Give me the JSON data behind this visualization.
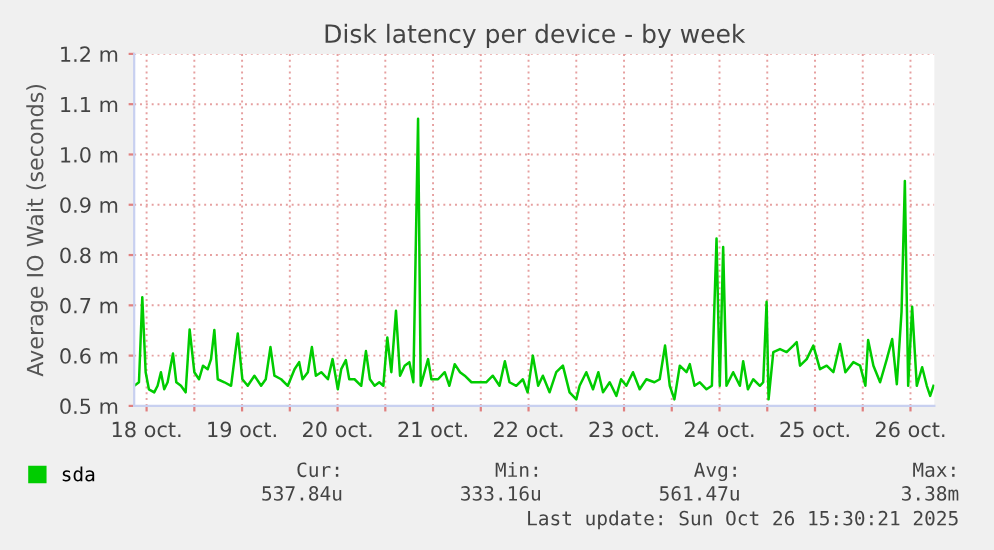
{
  "chart_data": {
    "type": "line",
    "title": "Disk latency per device - by week",
    "ylabel": "Average IO Wait (seconds)",
    "xlim": [
      "2025-10-18T08:53",
      "2025-10-26T18:00"
    ],
    "ylim": [
      0.5,
      1.2
    ],
    "xticks": [
      {
        "value": "2025-10-18T12:00",
        "label": "18 oct."
      },
      {
        "value": "2025-10-19T00:00",
        "label": null
      },
      {
        "value": "2025-10-19T12:00",
        "label": "19 oct."
      },
      {
        "value": "2025-10-20T00:00",
        "label": null
      },
      {
        "value": "2025-10-20T12:00",
        "label": "20 oct."
      },
      {
        "value": "2025-10-21T00:00",
        "label": null
      },
      {
        "value": "2025-10-21T12:00",
        "label": "21 oct."
      },
      {
        "value": "2025-10-22T00:00",
        "label": null
      },
      {
        "value": "2025-10-22T12:00",
        "label": "22 oct."
      },
      {
        "value": "2025-10-23T00:00",
        "label": null
      },
      {
        "value": "2025-10-23T12:00",
        "label": "23 oct."
      },
      {
        "value": "2025-10-24T00:00",
        "label": null
      },
      {
        "value": "2025-10-24T12:00",
        "label": "24 oct."
      },
      {
        "value": "2025-10-25T00:00",
        "label": null
      },
      {
        "value": "2025-10-25T12:00",
        "label": "25 oct."
      },
      {
        "value": "2025-10-26T00:00",
        "label": null
      },
      {
        "value": "2025-10-26T12:00",
        "label": "26 oct."
      }
    ],
    "yticks": [
      {
        "value": 0.5,
        "label": "0.5 m"
      },
      {
        "value": 0.6,
        "label": "0.6 m"
      },
      {
        "value": 0.7,
        "label": "0.7 m"
      },
      {
        "value": 0.8,
        "label": "0.8 m"
      },
      {
        "value": 0.9,
        "label": "0.9 m"
      },
      {
        "value": 1.0,
        "label": "1.0 m"
      },
      {
        "value": 1.1,
        "label": "1.1 m"
      },
      {
        "value": 1.2,
        "label": "1.2 m"
      }
    ],
    "grid": true,
    "legend": "bottom left",
    "marker": "none",
    "line_style": "solid",
    "annotations": [
      "Cur:",
      "Min:",
      "Avg:",
      "Max:",
      "537.84u",
      "333.16u",
      "561.47u",
      "3.38m",
      "Last update: Sun Oct 26 15:30:21 2025"
    ],
    "series": [
      {
        "name": "sda",
        "color": "#00cc00",
        "x": [
          "2025-10-18T08:54",
          "2025-10-18T10:05",
          "2025-10-18T10:55",
          "2025-10-18T11:46",
          "2025-10-18T12:35",
          "2025-10-18T13:55",
          "2025-10-18T14:46",
          "2025-10-18T15:36",
          "2025-10-18T16:26",
          "2025-10-18T17:17",
          "2025-10-18T18:38",
          "2025-10-18T19:28",
          "2025-10-18T20:38",
          "2025-10-18T21:49",
          "2025-10-18T22:49",
          "2025-10-19T00:00",
          "2025-10-19T01:11",
          "2025-10-19T02:11",
          "2025-10-19T03:22",
          "2025-10-19T04:12",
          "2025-10-19T05:02",
          "2025-10-19T05:53",
          "2025-10-19T07:34",
          "2025-10-19T09:14",
          "2025-10-19T10:55",
          "2025-10-19T12:04",
          "2025-10-19T13:25",
          "2025-10-19T15:06",
          "2025-10-19T16:47",
          "2025-10-19T17:57",
          "2025-10-19T19:08",
          "2025-10-19T20:08",
          "2025-10-19T21:49",
          "2025-10-19T23:30",
          "2025-10-20T01:11",
          "2025-10-20T02:21",
          "2025-10-20T03:12",
          "2025-10-20T04:32",
          "2025-10-20T05:33",
          "2025-10-20T06:33",
          "2025-10-20T07:54",
          "2025-10-20T09:35",
          "2025-10-20T10:45",
          "2025-10-20T12:04",
          "2025-10-20T12:55",
          "2025-10-20T14:05",
          "2025-10-20T14:56",
          "2025-10-20T16:16",
          "2025-10-20T17:57",
          "2025-10-20T19:08",
          "2025-10-20T20:08",
          "2025-10-20T21:19",
          "2025-10-20T22:29",
          "2025-10-20T23:30",
          "2025-10-21T00:30",
          "2025-10-21T01:31",
          "2025-10-21T02:41",
          "2025-10-21T03:42",
          "2025-10-21T04:52",
          "2025-10-21T06:03",
          "2025-10-21T07:03",
          "2025-10-21T08:14",
          "2025-10-21T08:54",
          "2025-10-21T10:45",
          "2025-10-21T11:35",
          "2025-10-21T13:15",
          "2025-10-21T14:56",
          "2025-10-21T16:06",
          "2025-10-21T17:27",
          "2025-10-21T18:47",
          "2025-10-21T19:58",
          "2025-10-21T21:39",
          "2025-10-22T01:21",
          "2025-10-22T03:01",
          "2025-10-22T04:42",
          "2025-10-22T06:03",
          "2025-10-22T07:13",
          "2025-10-22T08:54",
          "2025-10-22T10:35",
          "2025-10-22T11:46",
          "2025-10-22T13:05",
          "2025-10-22T14:25",
          "2025-10-22T15:36",
          "2025-10-22T17:17",
          "2025-10-22T18:58",
          "2025-10-22T20:38",
          "2025-10-22T22:19",
          "2025-10-23T00:00",
          "2025-10-23T00:50",
          "2025-10-23T02:31",
          "2025-10-23T04:12",
          "2025-10-23T05:33",
          "2025-10-23T06:43",
          "2025-10-23T08:24",
          "2025-10-23T10:05",
          "2025-10-23T11:15",
          "2025-10-23T12:35",
          "2025-10-23T14:15",
          "2025-10-23T15:56",
          "2025-10-23T17:37",
          "2025-10-23T19:38",
          "2025-10-23T20:58",
          "2025-10-23T22:19",
          "2025-10-23T23:30",
          "2025-10-24T00:40",
          "2025-10-24T02:01",
          "2025-10-24T03:42",
          "2025-10-24T04:32",
          "2025-10-24T05:43",
          "2025-10-24T07:03",
          "2025-10-24T08:44",
          "2025-10-24T10:05",
          "2025-10-24T11:15",
          "2025-10-24T12:04",
          "2025-10-24T12:55",
          "2025-10-24T13:45",
          "2025-10-24T15:26",
          "2025-10-24T17:07",
          "2025-10-24T17:57",
          "2025-10-24T19:08",
          "2025-10-24T20:28",
          "2025-10-24T22:09",
          "2025-10-24T22:59",
          "2025-10-24T23:50",
          "2025-10-25T00:20",
          "2025-10-25T01:31",
          "2025-10-25T03:12",
          "2025-10-25T04:52",
          "2025-10-25T06:33",
          "2025-10-25T07:24",
          "2025-10-25T08:14",
          "2025-10-25T09:55",
          "2025-10-25T11:35",
          "2025-10-25T13:15",
          "2025-10-25T14:56",
          "2025-10-25T16:37",
          "2025-10-25T18:17",
          "2025-10-25T19:38",
          "2025-10-25T21:39",
          "2025-10-25T23:20",
          "2025-10-26T00:40",
          "2025-10-26T01:21",
          "2025-10-26T02:41",
          "2025-10-26T04:22",
          "2025-10-26T06:03",
          "2025-10-26T07:24",
          "2025-10-26T08:34",
          "2025-10-26T09:45",
          "2025-10-26T10:35",
          "2025-10-26T11:25",
          "2025-10-26T12:25",
          "2025-10-26T13:35",
          "2025-10-26T14:56",
          "2025-10-26T16:06",
          "2025-10-26T16:57",
          "2025-10-26T17:47"
        ],
        "values": [
          0.54,
          0.547,
          0.716,
          0.567,
          0.533,
          0.527,
          0.54,
          0.567,
          0.533,
          0.547,
          0.604,
          0.547,
          0.54,
          0.527,
          0.652,
          0.567,
          0.553,
          0.58,
          0.573,
          0.593,
          0.651,
          0.553,
          0.547,
          0.54,
          0.644,
          0.553,
          0.54,
          0.56,
          0.54,
          0.553,
          0.617,
          0.56,
          0.553,
          0.54,
          0.573,
          0.587,
          0.553,
          0.567,
          0.617,
          0.56,
          0.567,
          0.553,
          0.593,
          0.533,
          0.573,
          0.591,
          0.553,
          0.553,
          0.54,
          0.609,
          0.553,
          0.54,
          0.547,
          0.54,
          0.636,
          0.567,
          0.689,
          0.56,
          0.58,
          0.587,
          0.547,
          1.071,
          0.54,
          0.593,
          0.553,
          0.553,
          0.567,
          0.54,
          0.583,
          0.567,
          0.56,
          0.547,
          0.547,
          0.56,
          0.54,
          0.589,
          0.547,
          0.54,
          0.553,
          0.527,
          0.6,
          0.54,
          0.56,
          0.527,
          0.567,
          0.58,
          0.527,
          0.513,
          0.54,
          0.567,
          0.533,
          0.567,
          0.527,
          0.547,
          0.52,
          0.553,
          0.54,
          0.567,
          0.533,
          0.553,
          0.547,
          0.553,
          0.62,
          0.54,
          0.513,
          0.58,
          0.567,
          0.583,
          0.54,
          0.547,
          0.533,
          0.54,
          0.833,
          0.54,
          0.816,
          0.54,
          0.567,
          0.54,
          0.589,
          0.533,
          0.553,
          0.54,
          0.547,
          0.707,
          0.513,
          0.607,
          0.613,
          0.607,
          0.62,
          0.627,
          0.58,
          0.593,
          0.62,
          0.573,
          0.58,
          0.567,
          0.623,
          0.567,
          0.587,
          0.58,
          0.54,
          0.631,
          0.58,
          0.547,
          0.593,
          0.633,
          0.543,
          0.687,
          0.947,
          0.54,
          0.697,
          0.54,
          0.577,
          0.54,
          0.52,
          0.54
        ]
      }
    ]
  }
}
